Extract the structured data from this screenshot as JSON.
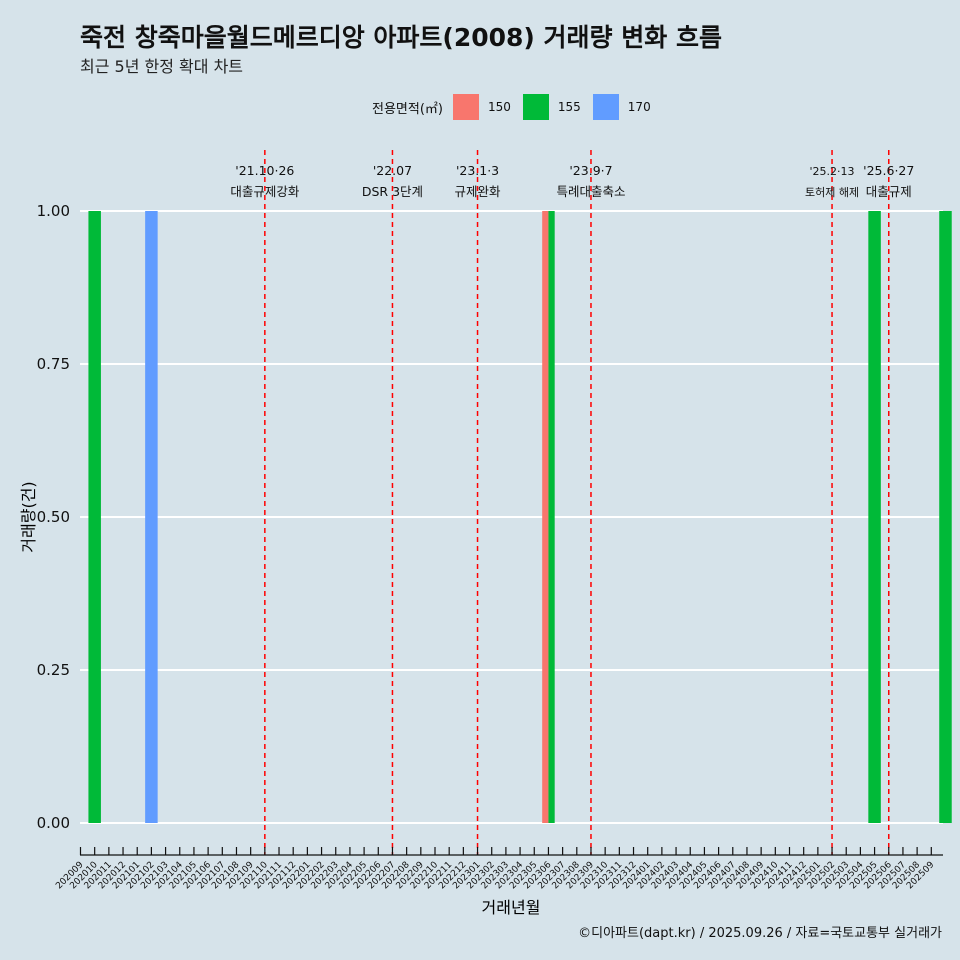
{
  "header": {
    "title": "죽전 창죽마을월드메르디앙 아파트(2008) 거래량 변화 흐름",
    "subtitle": "최근 5년 한정 확대 차트"
  },
  "legend": {
    "title": "전용면적(㎡)",
    "items": [
      {
        "label": "150",
        "color": "#f8766d"
      },
      {
        "label": "155",
        "color": "#00ba38"
      },
      {
        "label": "170",
        "color": "#619cff"
      }
    ]
  },
  "caption": "©디아파트(dapt.kr) / 2025.09.26 / 자료=국토교통부 실거래가",
  "chart_data": {
    "type": "bar",
    "xlabel": "거래년월",
    "ylabel": "거래량(건)",
    "ylim": [
      0,
      1
    ],
    "yticks": [
      "0.00",
      "0.25",
      "0.50",
      "0.75",
      "1.00"
    ],
    "categories": [
      "202009",
      "202010",
      "202011",
      "202012",
      "202101",
      "202102",
      "202103",
      "202104",
      "202105",
      "202106",
      "202107",
      "202108",
      "202109",
      "202110",
      "202111",
      "202112",
      "202201",
      "202202",
      "202203",
      "202204",
      "202205",
      "202206",
      "202207",
      "202208",
      "202209",
      "202210",
      "202211",
      "202212",
      "202301",
      "202302",
      "202303",
      "202304",
      "202305",
      "202306",
      "202307",
      "202308",
      "202309",
      "202310",
      "202311",
      "202312",
      "202401",
      "202402",
      "202403",
      "202404",
      "202405",
      "202406",
      "202407",
      "202408",
      "202409",
      "202410",
      "202411",
      "202412",
      "202501",
      "202502",
      "202503",
      "202504",
      "202505",
      "202506",
      "202507",
      "202508",
      "202509"
    ],
    "series": [
      {
        "name": "150",
        "color": "#f8766d",
        "points": [
          {
            "x": "202306",
            "y": 1
          }
        ]
      },
      {
        "name": "155",
        "color": "#00ba38",
        "points": [
          {
            "x": "202010",
            "y": 1
          },
          {
            "x": "202306",
            "y": 1
          },
          {
            "x": "202505",
            "y": 1
          },
          {
            "x": "202510",
            "y": 1
          }
        ]
      },
      {
        "name": "170",
        "color": "#619cff",
        "points": [
          {
            "x": "202102",
            "y": 1
          }
        ]
      }
    ],
    "events": [
      {
        "date": "'21.10·26",
        "label": "대출규제강화",
        "x": "202110"
      },
      {
        "date": "'22.07",
        "label": "DSR 3단계",
        "x": "202207"
      },
      {
        "date": "'23.1·3",
        "label": "규제완화",
        "x": "202301"
      },
      {
        "date": "'23.9·7",
        "label": "특례대출축소",
        "x": "202309"
      },
      {
        "date": "'25.2·13",
        "label": "토허제 해제",
        "x": "202502"
      },
      {
        "date": "'25.6·27",
        "label": "대출규제",
        "x": "202506"
      }
    ]
  }
}
